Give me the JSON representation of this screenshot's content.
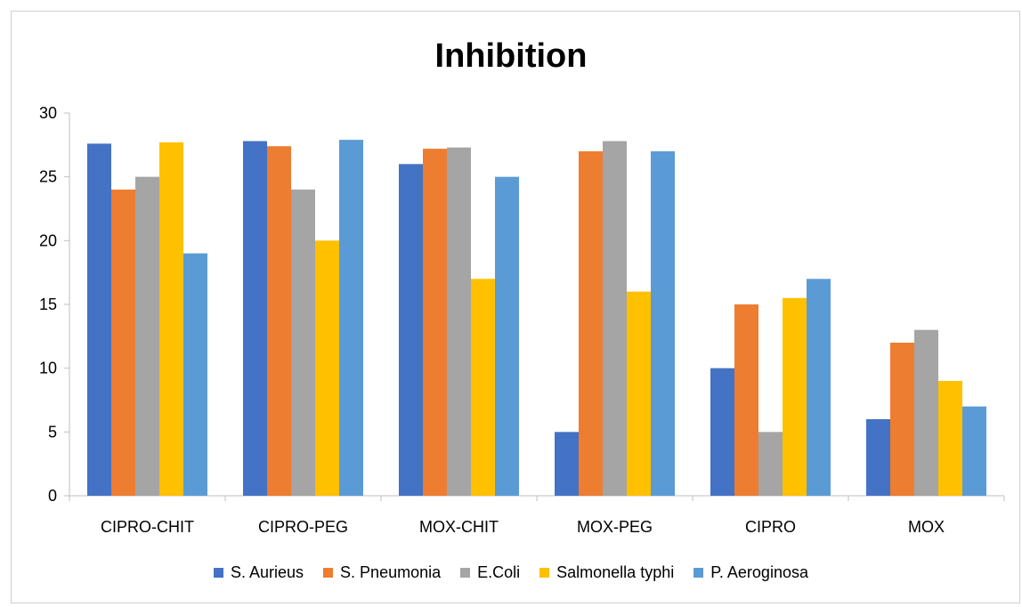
{
  "chart_data": {
    "type": "bar",
    "title": "Inhibition",
    "xlabel": "",
    "ylabel": "",
    "ylim": [
      0,
      30
    ],
    "yticks": [
      "0",
      "5",
      "10",
      "15",
      "20",
      "25",
      "30"
    ],
    "grid": false,
    "legend_position": "bottom",
    "categories": [
      "CIPRO-CHIT",
      "CIPRO-PEG",
      "MOX-CHIT",
      "MOX-PEG",
      "CIPRO",
      "MOX"
    ],
    "series": [
      {
        "name": "S. Aurieus",
        "color": "#4472c4",
        "values": [
          27.6,
          27.8,
          26,
          5,
          10,
          6
        ]
      },
      {
        "name": "S. Pneumonia",
        "color": "#ed7d31",
        "values": [
          24,
          27.4,
          27.2,
          27,
          15,
          12
        ]
      },
      {
        "name": "E.Coli",
        "color": "#a5a5a5",
        "values": [
          25,
          24,
          27.3,
          27.8,
          5,
          13
        ]
      },
      {
        "name": "Salmonella typhi",
        "color": "#ffc000",
        "values": [
          27.7,
          20,
          17,
          16,
          15.5,
          9
        ]
      },
      {
        "name": "P. Aeroginosa",
        "color": "#5b9bd5",
        "values": [
          19,
          27.9,
          25,
          27,
          17,
          7
        ]
      }
    ]
  }
}
